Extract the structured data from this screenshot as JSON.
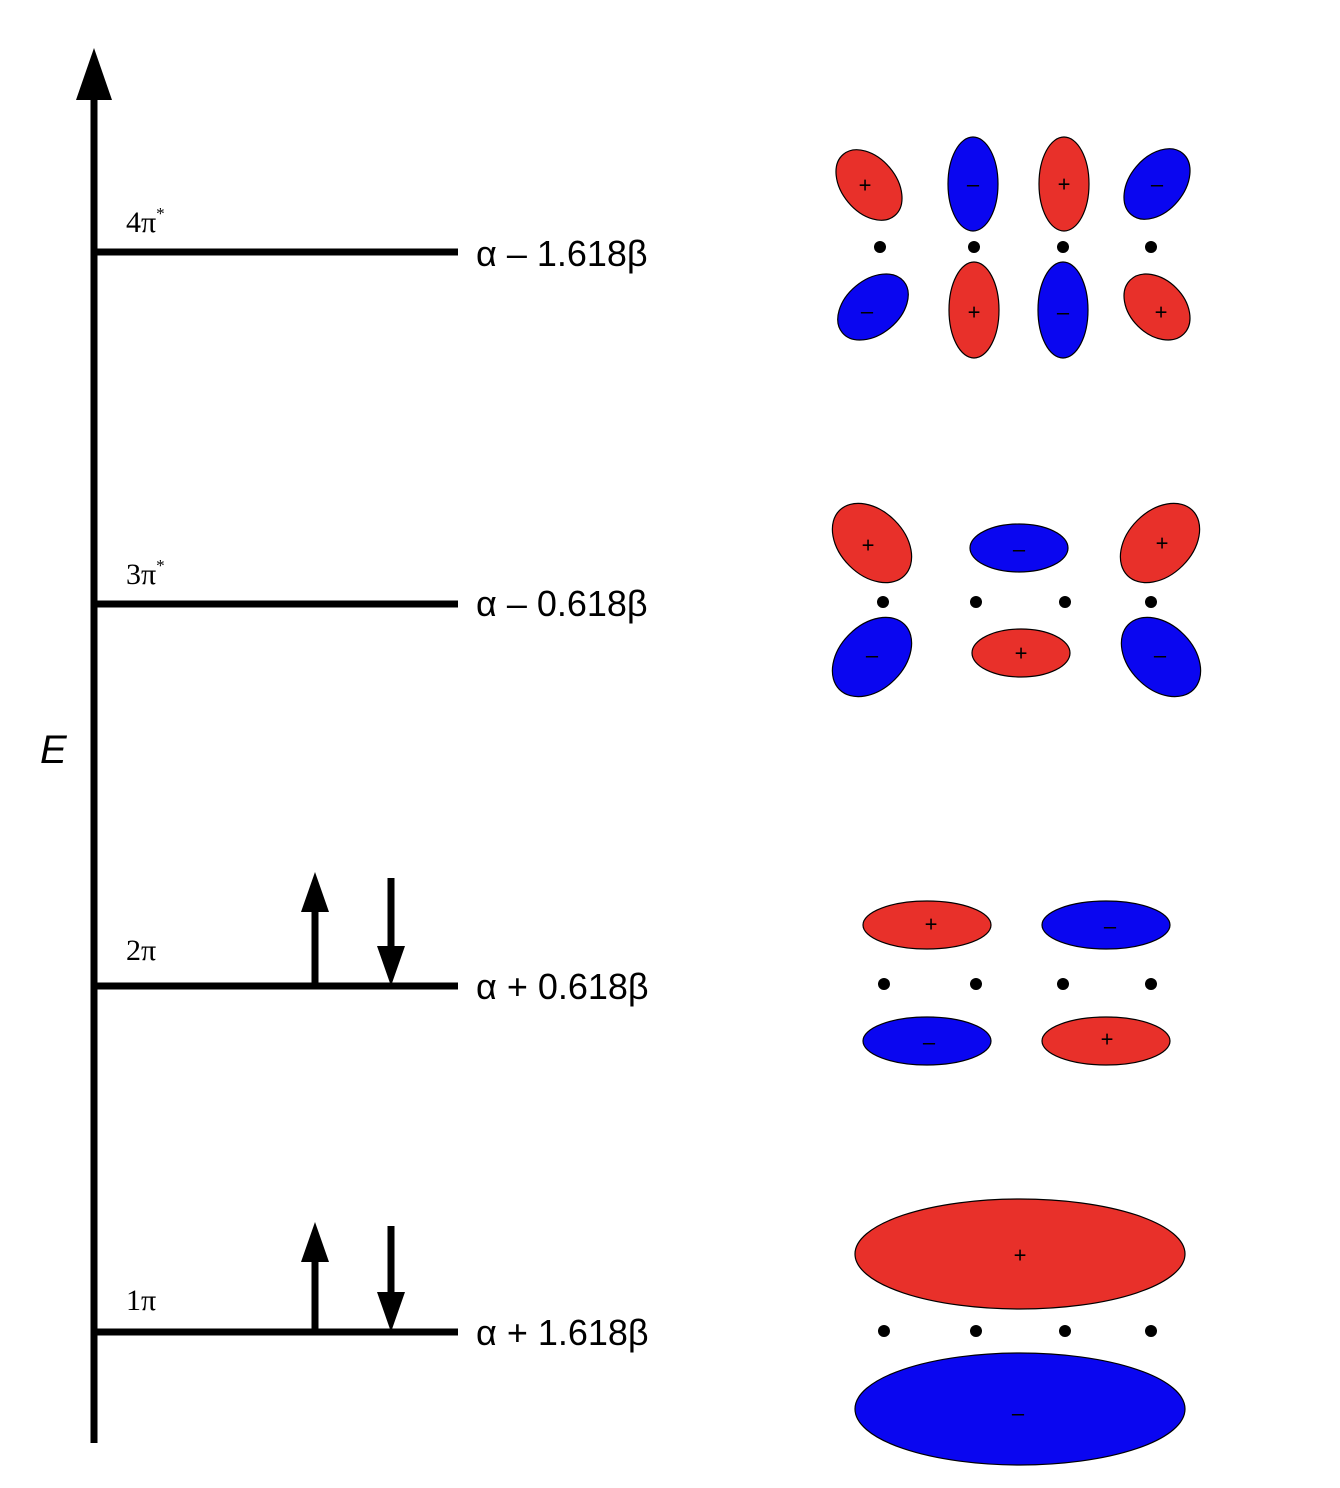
{
  "axis": {
    "label": "E"
  },
  "colors": {
    "positive": "#e8302a",
    "negative": "#0a06f0",
    "line": "#000000"
  },
  "levels": [
    {
      "name": "4π",
      "superscript": "*",
      "energy": "α – 1.618β",
      "electrons": []
    },
    {
      "name": "3π",
      "superscript": "*",
      "energy": "α – 0.618β",
      "electrons": []
    },
    {
      "name": "2π",
      "superscript": "",
      "energy": "α + 0.618β",
      "electrons": [
        "up",
        "down"
      ]
    },
    {
      "name": "1π",
      "superscript": "",
      "energy": "α + 1.618β",
      "electrons": [
        "up",
        "down"
      ]
    }
  ],
  "signs": {
    "plus": "+",
    "minus": "–"
  }
}
